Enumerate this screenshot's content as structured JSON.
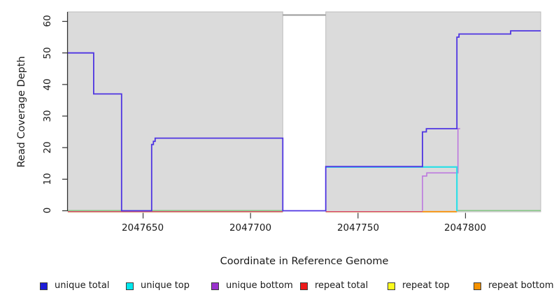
{
  "chart_data": {
    "type": "line",
    "subtype": "step-coverage-plot",
    "title": "",
    "xlabel": "Coordinate in Reference Genome",
    "ylabel": "Read Coverage Depth",
    "xlim": [
      2047615,
      2047835
    ],
    "ylim": [
      0,
      63
    ],
    "xticks": [
      2047650,
      2047700,
      2047750,
      2047800
    ],
    "xtick_labels": [
      "2047650",
      "2047700",
      "2047750",
      "2047800"
    ],
    "yticks": [
      0,
      10,
      20,
      30,
      40,
      50,
      60
    ],
    "ytick_labels": [
      "0",
      "10",
      "20",
      "30",
      "40",
      "50",
      "60"
    ],
    "grid": false,
    "legend_position": "bottom",
    "shaded_regions": [
      {
        "name": "covered-region-left",
        "x0": 2047615,
        "x1": 2047715,
        "fill": "#DBDBDB",
        "border": "#BDBDBD"
      },
      {
        "name": "covered-region-right",
        "x0": 2047735,
        "x1": 2047835,
        "fill": "#DBDBDB",
        "border": "#BDBDBD"
      }
    ],
    "uncovered_gap": {
      "x0": 2047715,
      "x1": 2047735,
      "top_line_y": 62,
      "top_line_color": "#9A9A9A"
    },
    "series": [
      {
        "name": "repeat top",
        "line_color": "#EDE3BC",
        "width": 1.2,
        "dy": 2.4,
        "segments": [
          [
            [
              2047615,
              0
            ],
            [
              2047715,
              0
            ]
          ],
          [
            [
              2047735,
              0
            ],
            [
              2047796,
              0
            ]
          ]
        ]
      },
      {
        "name": "repeat total",
        "line_color": "#D64664",
        "width": 1.4,
        "dy": 1.2,
        "segments": [
          [
            [
              2047615,
              0
            ],
            [
              2047715,
              0
            ]
          ],
          [
            [
              2047735,
              0
            ],
            [
              2047780,
              0
            ]
          ]
        ]
      },
      {
        "name": "repeat bottom",
        "line_color": "#FB8B00",
        "width": 1.6,
        "dy": 1.2,
        "segments": [
          [
            [
              2047780,
              0
            ],
            [
              2047796,
              0
            ]
          ]
        ]
      },
      {
        "name": "baseline green",
        "line_color": "#7CC67C",
        "width": 1.4,
        "dy": -0.3,
        "segments": [
          [
            [
              2047615,
              0
            ],
            [
              2047715,
              0
            ]
          ],
          [
            [
              2047796,
              0
            ],
            [
              2047835,
              0
            ]
          ]
        ]
      },
      {
        "name": "unique bottom",
        "line_color": "#BC77DE",
        "width": 1.6,
        "dy": 0,
        "segments": [
          [
            [
              2047780,
              0
            ],
            [
              2047780,
              11
            ],
            [
              2047782,
              11
            ],
            [
              2047782,
              12
            ],
            [
              2047796.5,
              12
            ],
            [
              2047796.5,
              26
            ],
            [
              2047797.5,
              26
            ]
          ]
        ]
      },
      {
        "name": "unique top",
        "line_color": "#2EDFE6",
        "width": 2.2,
        "dy": 0.6,
        "segments": [
          [
            [
              2047735,
              14
            ],
            [
              2047796,
              14
            ],
            [
              2047796,
              0
            ]
          ]
        ]
      },
      {
        "name": "unique total",
        "line_color": "#4E34E2",
        "width": 1.8,
        "dy": 0,
        "segments": [
          [
            [
              2047615,
              50
            ],
            [
              2047627,
              50
            ],
            [
              2047627,
              37
            ],
            [
              2047640,
              37
            ],
            [
              2047640,
              0
            ],
            [
              2047654,
              0
            ],
            [
              2047654,
              21
            ],
            [
              2047654.8,
              21
            ],
            [
              2047654.8,
              22
            ],
            [
              2047655.6,
              22
            ],
            [
              2047655.6,
              23
            ],
            [
              2047715,
              23
            ],
            [
              2047715,
              0
            ],
            [
              2047735,
              0
            ],
            [
              2047735,
              14
            ],
            [
              2047780,
              14
            ],
            [
              2047780,
              25
            ],
            [
              2047781.8,
              25
            ],
            [
              2047781.8,
              26
            ],
            [
              2047796,
              26
            ],
            [
              2047796,
              55
            ],
            [
              2047797,
              55
            ],
            [
              2047797,
              56
            ],
            [
              2047821,
              56
            ],
            [
              2047821,
              57
            ],
            [
              2047835,
              57
            ]
          ]
        ]
      }
    ],
    "legend": {
      "items": [
        {
          "label": "unique total",
          "color": "#1C1CD8"
        },
        {
          "label": "unique top",
          "color": "#00E8EE"
        },
        {
          "label": "unique bottom",
          "color": "#9A32CE"
        },
        {
          "label": "repeat total",
          "color": "#EE1A1A"
        },
        {
          "label": "repeat top",
          "color": "#FBFB1E"
        },
        {
          "label": "repeat bottom",
          "color": "#F59200"
        }
      ]
    }
  }
}
